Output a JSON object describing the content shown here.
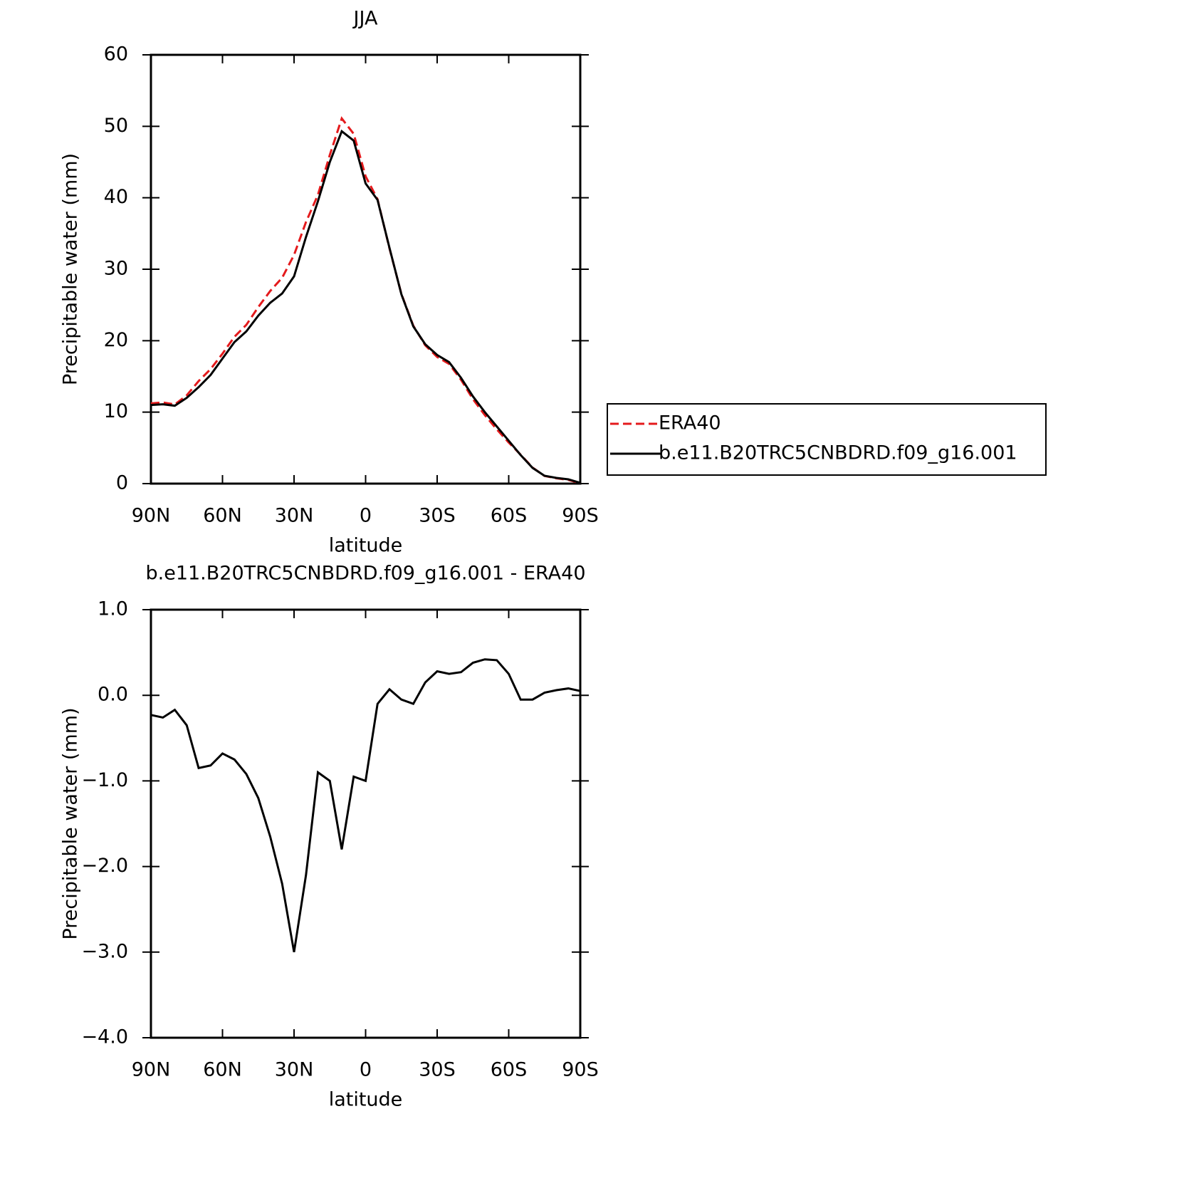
{
  "chart_data": [
    {
      "type": "line",
      "title": "JJA",
      "x_label": "latitude",
      "y_label": "Precipitable water (mm)",
      "x": [
        90,
        85,
        80,
        75,
        70,
        65,
        60,
        55,
        50,
        45,
        40,
        35,
        30,
        25,
        20,
        15,
        10,
        5,
        0,
        -5,
        -10,
        -15,
        -20,
        -25,
        -30,
        -35,
        -40,
        -45,
        -50,
        -55,
        -60,
        -65,
        -70,
        -75,
        -80,
        -85,
        -90
      ],
      "series": [
        {
          "name": "ERA40",
          "color": "#e41a1c",
          "line_style": "dashed",
          "values": [
            11.23,
            11.36,
            11.07,
            12.35,
            14.35,
            16.02,
            18.18,
            20.55,
            22.22,
            24.7,
            26.95,
            28.8,
            32.0,
            36.6,
            40.4,
            46.0,
            51.1,
            48.95,
            43.0,
            39.8,
            32.93,
            26.55,
            22.1,
            19.35,
            17.72,
            16.75,
            14.53,
            11.82,
            9.58,
            7.59,
            5.75,
            4.05,
            2.25,
            1.07,
            0.74,
            0.52,
            0.05
          ]
        },
        {
          "name": "b.e11.B20TRC5CNBDRD.f09_g16.001",
          "color": "#000000",
          "line_style": "solid",
          "values": [
            11.0,
            11.1,
            10.9,
            12.0,
            13.5,
            15.2,
            17.5,
            19.8,
            21.3,
            23.5,
            25.3,
            26.6,
            29.0,
            34.5,
            39.5,
            45.0,
            49.3,
            48.0,
            42.0,
            39.7,
            33.0,
            26.5,
            22.0,
            19.5,
            18.0,
            17.0,
            14.8,
            12.2,
            10.0,
            8.0,
            6.0,
            4.0,
            2.2,
            1.1,
            0.8,
            0.6,
            0.1
          ]
        }
      ],
      "xlim": [
        90,
        -90
      ],
      "xticks": [
        {
          "value": 90,
          "label": "90N"
        },
        {
          "value": 60,
          "label": "60N"
        },
        {
          "value": 30,
          "label": "30N"
        },
        0,
        {
          "value": -30,
          "label": "30S"
        },
        {
          "value": -60,
          "label": "60S"
        },
        {
          "value": -90,
          "label": "90S"
        }
      ],
      "ylim": [
        0,
        60
      ],
      "yticks": [
        0,
        10,
        20,
        30,
        40,
        50,
        60
      ],
      "legend": "right",
      "grid": false
    },
    {
      "type": "line",
      "title": "b.e11.B20TRC5CNBDRD.f09_g16.001 - ERA40",
      "x_label": "latitude",
      "y_label": "Precipitable water (mm)",
      "x": [
        90,
        85,
        80,
        75,
        70,
        65,
        60,
        55,
        50,
        45,
        40,
        35,
        30,
        25,
        20,
        15,
        10,
        5,
        0,
        -5,
        -10,
        -15,
        -20,
        -25,
        -30,
        -35,
        -40,
        -45,
        -50,
        -55,
        -60,
        -65,
        -70,
        -75,
        -80,
        -85,
        -90
      ],
      "series": [
        {
          "color": "#000000",
          "line_style": "solid",
          "values": [
            -0.23,
            -0.26,
            -0.17,
            -0.35,
            -0.85,
            -0.82,
            -0.68,
            -0.75,
            -0.92,
            -1.2,
            -1.65,
            -2.2,
            -3.0,
            -2.1,
            -0.9,
            -1.0,
            -1.8,
            -0.95,
            -1.0,
            -0.1,
            0.07,
            -0.05,
            -0.1,
            0.15,
            0.28,
            0.25,
            0.27,
            0.38,
            0.42,
            0.41,
            0.25,
            -0.05,
            -0.05,
            0.03,
            0.06,
            0.08,
            0.05
          ]
        }
      ],
      "xlim": [
        90,
        -90
      ],
      "xticks": [
        {
          "value": 90,
          "label": "90N"
        },
        {
          "value": 60,
          "label": "60N"
        },
        {
          "value": 30,
          "label": "30N"
        },
        0,
        {
          "value": -30,
          "label": "30S"
        },
        {
          "value": -60,
          "label": "60S"
        },
        {
          "value": -90,
          "label": "90S"
        }
      ],
      "ylim": [
        -4,
        1
      ],
      "yticks": [
        {
          "value": -4,
          "label": "−4.0"
        },
        {
          "value": -3,
          "label": "−3.0"
        },
        {
          "value": -2,
          "label": "−2.0"
        },
        {
          "value": -1,
          "label": "−1.0"
        },
        {
          "value": 0,
          "label": "0.0"
        },
        {
          "value": 1,
          "label": "1.0"
        }
      ],
      "grid": false
    }
  ]
}
